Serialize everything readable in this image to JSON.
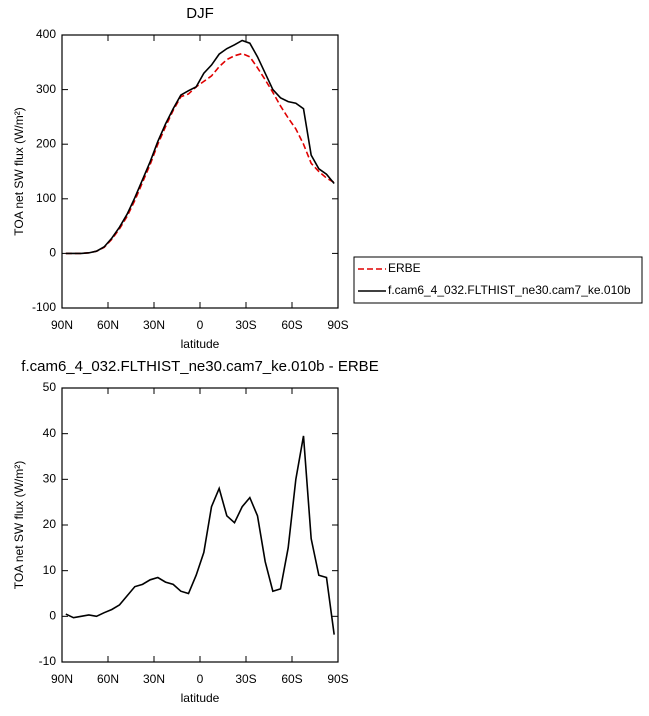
{
  "chart_data": [
    {
      "type": "line",
      "title": "DJF",
      "xlabel": "latitude",
      "ylabel": "TOA net SW flux (W/m²)",
      "x": [
        87.5,
        82.5,
        77.5,
        72.5,
        67.5,
        62.5,
        57.5,
        52.5,
        47.5,
        42.5,
        37.5,
        32.5,
        27.5,
        22.5,
        17.5,
        12.5,
        7.5,
        2.5,
        -2.5,
        -7.5,
        -12.5,
        -17.5,
        -22.5,
        -27.5,
        -32.5,
        -37.5,
        -42.5,
        -47.5,
        -52.5,
        -57.5,
        -62.5,
        -67.5,
        -72.5,
        -77.5,
        -82.5,
        -87.5
      ],
      "series": [
        {
          "name": "ERBE",
          "color": "#e00000",
          "style": "dashed",
          "values": [
            0,
            0,
            0,
            1,
            4,
            11,
            26,
            45,
            68,
            97,
            130,
            163,
            200,
            232,
            262,
            287,
            292,
            305,
            315,
            325,
            342,
            355,
            362,
            366,
            360,
            340,
            318,
            295,
            270,
            248,
            228,
            200,
            165,
            150,
            138,
            130
          ]
        },
        {
          "name": "f.cam6_4_032.FLTHIST_ne30.cam7_ke.010b",
          "color": "#000000",
          "style": "solid",
          "values": [
            0,
            0,
            0,
            1,
            4,
            12,
            28,
            48,
            72,
            102,
            135,
            168,
            205,
            237,
            265,
            290,
            298,
            305,
            330,
            345,
            365,
            375,
            382,
            390,
            385,
            360,
            330,
            300,
            285,
            278,
            275,
            265,
            180,
            155,
            145,
            128
          ]
        }
      ],
      "xlim": [
        90,
        -90
      ],
      "xticks": [
        {
          "value": 90,
          "label": "90N"
        },
        {
          "value": 60,
          "label": "60N"
        },
        {
          "value": 30,
          "label": "30N"
        },
        0,
        {
          "value": -30,
          "label": "30S"
        },
        {
          "value": -60,
          "label": "60S"
        },
        {
          "value": -90,
          "label": "90S"
        }
      ],
      "ylim": [
        -100,
        400
      ],
      "yticks": [
        -100,
        0,
        100,
        200,
        300,
        400
      ],
      "legend": "outside-right"
    },
    {
      "type": "line",
      "title": "f.cam6_4_032.FLTHIST_ne30.cam7_ke.010b - ERBE",
      "xlabel": "latitude",
      "ylabel": "TOA net SW flux (W/m²)",
      "x": [
        87.5,
        82.5,
        77.5,
        72.5,
        67.5,
        62.5,
        57.5,
        52.5,
        47.5,
        42.5,
        37.5,
        32.5,
        27.5,
        22.5,
        17.5,
        12.5,
        7.5,
        2.5,
        -2.5,
        -7.5,
        -12.5,
        -17.5,
        -22.5,
        -27.5,
        -32.5,
        -37.5,
        -42.5,
        -47.5,
        -52.5,
        -57.5,
        -62.5,
        -67.5,
        -72.5,
        -77.5,
        -82.5,
        -87.5
      ],
      "series": [
        {
          "color": "#000000",
          "style": "solid",
          "values": [
            0.5,
            -0.3,
            0,
            0.3,
            0,
            0.8,
            1.5,
            2.5,
            4.5,
            6.5,
            7,
            8,
            8.5,
            7.5,
            7,
            5.5,
            5,
            9,
            14,
            24,
            28,
            22,
            20.5,
            24,
            26,
            22,
            12,
            5.5,
            6,
            15,
            30,
            39.5,
            17,
            9,
            8.5,
            -4
          ]
        }
      ],
      "xlim": [
        90,
        -90
      ],
      "xticks": [
        {
          "value": 90,
          "label": "90N"
        },
        {
          "value": 60,
          "label": "60N"
        },
        {
          "value": 30,
          "label": "30N"
        },
        0,
        {
          "value": -30,
          "label": "30S"
        },
        {
          "value": -60,
          "label": "60S"
        },
        {
          "value": -90,
          "label": "90S"
        }
      ],
      "ylim": [
        -10,
        50
      ],
      "yticks": [
        -10,
        0,
        10,
        20,
        30,
        40,
        50
      ]
    }
  ]
}
